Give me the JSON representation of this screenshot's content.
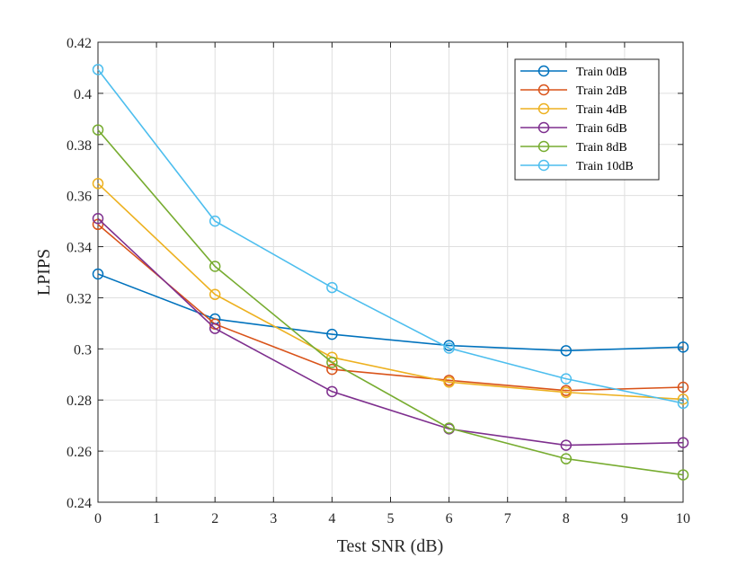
{
  "chart_data": {
    "type": "line",
    "title": "",
    "xlabel": "Test SNR (dB)",
    "ylabel": "LPIPS",
    "xlim": [
      0,
      10
    ],
    "ylim": [
      0.24,
      0.42
    ],
    "xticks": [
      "0",
      "1",
      "2",
      "3",
      "4",
      "5",
      "6",
      "7",
      "8",
      "9",
      "10"
    ],
    "yticks": [
      "0.24",
      "0.26",
      "0.28",
      "0.3",
      "0.32",
      "0.34",
      "0.36",
      "0.38",
      "0.4",
      "0.42"
    ],
    "grid": true,
    "legend_position": "top-right",
    "x": [
      0,
      2,
      4,
      6,
      8,
      10
    ],
    "series": [
      {
        "name": "Train 0dB",
        "color": "#0072BD",
        "values": [
          0.3293,
          0.3117,
          0.3057,
          0.3013,
          0.2993,
          0.3007
        ]
      },
      {
        "name": "Train 2dB",
        "color": "#D95319",
        "values": [
          0.3487,
          0.3097,
          0.292,
          0.2877,
          0.2837,
          0.285
        ]
      },
      {
        "name": "Train 4dB",
        "color": "#EDB120",
        "values": [
          0.3647,
          0.3213,
          0.2967,
          0.287,
          0.283,
          0.2803
        ]
      },
      {
        "name": "Train 6dB",
        "color": "#7E2F8E",
        "values": [
          0.351,
          0.308,
          0.2833,
          0.2687,
          0.2623,
          0.2633
        ]
      },
      {
        "name": "Train 8dB",
        "color": "#77AC30",
        "values": [
          0.3857,
          0.3323,
          0.2947,
          0.269,
          0.257,
          0.2507
        ]
      },
      {
        "name": "Train 10dB",
        "color": "#4DBEEE",
        "values": [
          0.4093,
          0.35,
          0.324,
          0.3003,
          0.2883,
          0.2787
        ]
      }
    ]
  }
}
